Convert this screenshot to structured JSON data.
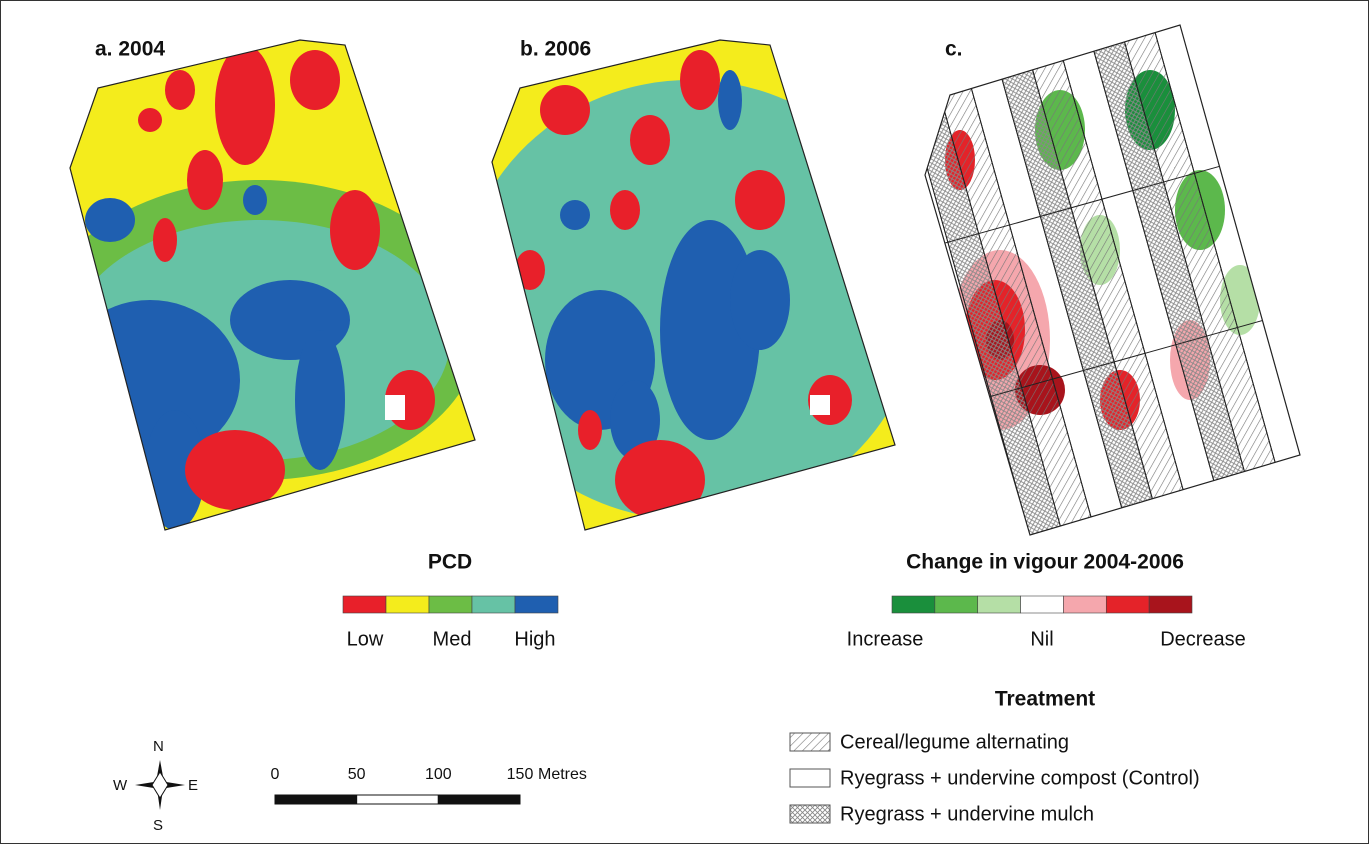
{
  "panels": [
    {
      "label": "a. 2004"
    },
    {
      "label": "b. 2006"
    },
    {
      "label": "c."
    }
  ],
  "pcd_legend": {
    "title": "PCD",
    "colors": [
      "#e8202a",
      "#f4ec1c",
      "#6cbd45",
      "#66c2a5",
      "#1f5fb0"
    ],
    "labels": [
      "Low",
      "Med",
      "High"
    ]
  },
  "change_legend": {
    "title": "Change in vigour 2004-2006",
    "colors": [
      "#1a8f3c",
      "#5cb84c",
      "#b5dfa6",
      "#ffffff",
      "#f5a7ad",
      "#e42329",
      "#a8141c"
    ],
    "labels": [
      "Increase",
      "Nil",
      "Decrease"
    ]
  },
  "treatment_legend": {
    "title": "Treatment",
    "items": [
      "Cereal/legume alternating",
      "Ryegrass + undervine compost (Control)",
      "Ryegrass + undervine mulch"
    ]
  },
  "scale_bar": {
    "ticks": [
      0,
      50,
      100,
      150
    ],
    "unit": "Metres"
  },
  "compass": {
    "n": "N",
    "s": "S",
    "e": "E",
    "w": "W"
  }
}
